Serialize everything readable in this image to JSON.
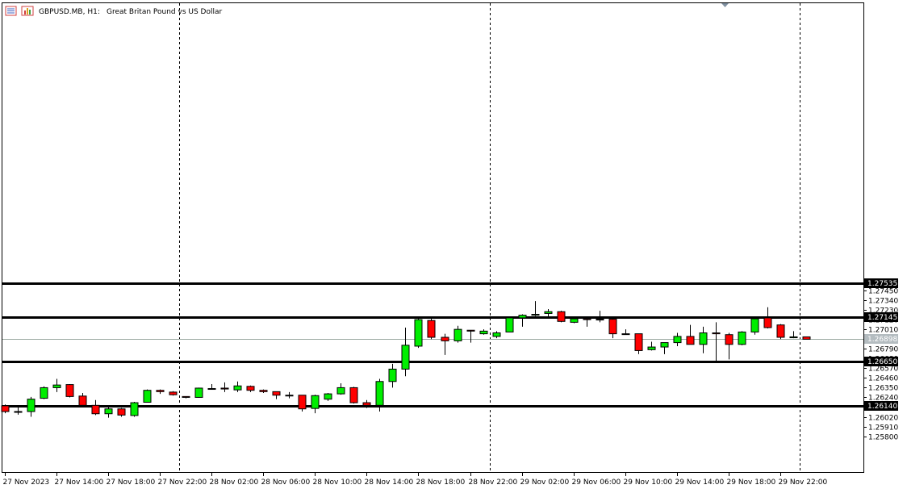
{
  "header": {
    "symbol": "GBPUSD.MB, H1:",
    "description": "Great Britan Pound vs US Dollar"
  },
  "colors": {
    "bull": "#00ee00",
    "bear": "#ff0000",
    "outline": "#000000",
    "level_line": "#000000",
    "price_line": "#9aa8a0",
    "label_bg": "#000000",
    "price_label_bg": "#b4bcc0"
  },
  "chart_data": {
    "type": "candlestick",
    "timeframe": "H1",
    "title": "GBPUSD.MB, H1:  Great Britan Pound vs US Dollar",
    "y_axis": {
      "side": "right",
      "range": [
        1.257,
        1.2762
      ],
      "ticks": [
        "1.27560",
        "1.27450",
        "1.27340",
        "1.27230",
        "1.27120",
        "1.27010",
        "1.26790",
        "1.26680",
        "1.26570",
        "1.26460",
        "1.26350",
        "1.26240",
        "1.26020",
        "1.25910",
        "1.25800"
      ]
    },
    "x_axis": {
      "ticks": [
        {
          "bar": 0,
          "label": "27 Nov 2023"
        },
        {
          "bar": 4,
          "label": "27 Nov 14:00"
        },
        {
          "bar": 8,
          "label": "27 Nov 18:00"
        },
        {
          "bar": 12,
          "label": "27 Nov 22:00"
        },
        {
          "bar": 16,
          "label": "28 Nov 02:00"
        },
        {
          "bar": 20,
          "label": "28 Nov 06:00"
        },
        {
          "bar": 24,
          "label": "28 Nov 10:00"
        },
        {
          "bar": 28,
          "label": "28 Nov 14:00"
        },
        {
          "bar": 32,
          "label": "28 Nov 18:00"
        },
        {
          "bar": 36,
          "label": "28 Nov 22:00"
        },
        {
          "bar": 40,
          "label": "29 Nov 02:00"
        },
        {
          "bar": 44,
          "label": "29 Nov 06:00"
        },
        {
          "bar": 48,
          "label": "29 Nov 10:00"
        },
        {
          "bar": 52,
          "label": "29 Nov 14:00"
        },
        {
          "bar": 56,
          "label": "29 Nov 18:00"
        },
        {
          "bar": 60,
          "label": "29 Nov 22:00"
        }
      ]
    },
    "period_separators": [
      13.5,
      37.5,
      61.5
    ],
    "horizontal_levels": [
      {
        "value": "1.27535",
        "price": 1.27535
      },
      {
        "value": "1.27145",
        "price": 1.27145
      },
      {
        "value": "1.26650",
        "price": 1.2665
      },
      {
        "value": "1.26140",
        "price": 1.2614
      }
    ],
    "current_price": {
      "value": "1.26898",
      "price": 1.26898
    },
    "candles": [
      {
        "o": 1.26145,
        "h": 1.2616,
        "l": 1.2606,
        "c": 1.2608
      },
      {
        "o": 1.26075,
        "h": 1.2615,
        "l": 1.26045,
        "c": 1.2608
      },
      {
        "o": 1.2608,
        "h": 1.26245,
        "l": 1.2602,
        "c": 1.2622
      },
      {
        "o": 1.2623,
        "h": 1.26365,
        "l": 1.2622,
        "c": 1.2635
      },
      {
        "o": 1.2635,
        "h": 1.2645,
        "l": 1.263,
        "c": 1.2638
      },
      {
        "o": 1.26385,
        "h": 1.2639,
        "l": 1.2624,
        "c": 1.2625
      },
      {
        "o": 1.26255,
        "h": 1.2629,
        "l": 1.2613,
        "c": 1.2615
      },
      {
        "o": 1.2615,
        "h": 1.2621,
        "l": 1.2604,
        "c": 1.26055
      },
      {
        "o": 1.26055,
        "h": 1.2613,
        "l": 1.2601,
        "c": 1.2611
      },
      {
        "o": 1.2611,
        "h": 1.2612,
        "l": 1.2602,
        "c": 1.2604
      },
      {
        "o": 1.26035,
        "h": 1.2619,
        "l": 1.2602,
        "c": 1.2618
      },
      {
        "o": 1.26185,
        "h": 1.2633,
        "l": 1.2618,
        "c": 1.2632
      },
      {
        "o": 1.2632,
        "h": 1.2633,
        "l": 1.2628,
        "c": 1.26305
      },
      {
        "o": 1.263,
        "h": 1.2631,
        "l": 1.2626,
        "c": 1.2627
      },
      {
        "o": 1.2625,
        "h": 1.2625,
        "l": 1.2623,
        "c": 1.2624
      },
      {
        "o": 1.2624,
        "h": 1.2635,
        "l": 1.26235,
        "c": 1.26345
      },
      {
        "o": 1.2634,
        "h": 1.2639,
        "l": 1.2633,
        "c": 1.2634
      },
      {
        "o": 1.26345,
        "h": 1.2641,
        "l": 1.263,
        "c": 1.26335
      },
      {
        "o": 1.26325,
        "h": 1.2642,
        "l": 1.263,
        "c": 1.2637
      },
      {
        "o": 1.26365,
        "h": 1.26375,
        "l": 1.263,
        "c": 1.2632
      },
      {
        "o": 1.2632,
        "h": 1.2633,
        "l": 1.2629,
        "c": 1.26305
      },
      {
        "o": 1.26305,
        "h": 1.26305,
        "l": 1.2622,
        "c": 1.26265
      },
      {
        "o": 1.26265,
        "h": 1.263,
        "l": 1.2623,
        "c": 1.2626
      },
      {
        "o": 1.26265,
        "h": 1.26265,
        "l": 1.2608,
        "c": 1.2611
      },
      {
        "o": 1.26115,
        "h": 1.2627,
        "l": 1.2606,
        "c": 1.2626
      },
      {
        "o": 1.2622,
        "h": 1.2629,
        "l": 1.262,
        "c": 1.2628
      },
      {
        "o": 1.2628,
        "h": 1.264,
        "l": 1.2627,
        "c": 1.2635
      },
      {
        "o": 1.2635,
        "h": 1.2636,
        "l": 1.2617,
        "c": 1.2618
      },
      {
        "o": 1.2618,
        "h": 1.2621,
        "l": 1.2612,
        "c": 1.2615
      },
      {
        "o": 1.2615,
        "h": 1.2645,
        "l": 1.2608,
        "c": 1.2642
      },
      {
        "o": 1.2642,
        "h": 1.2662,
        "l": 1.2635,
        "c": 1.2656
      },
      {
        "o": 1.2656,
        "h": 1.2703,
        "l": 1.2648,
        "c": 1.2683
      },
      {
        "o": 1.2682,
        "h": 1.2713,
        "l": 1.268,
        "c": 1.2712
      },
      {
        "o": 1.2711,
        "h": 1.2713,
        "l": 1.269,
        "c": 1.2692
      },
      {
        "o": 1.2692,
        "h": 1.2696,
        "l": 1.2672,
        "c": 1.2688
      },
      {
        "o": 1.2688,
        "h": 1.2705,
        "l": 1.2686,
        "c": 1.2701
      },
      {
        "o": 1.27,
        "h": 1.27,
        "l": 1.2686,
        "c": 1.2699
      },
      {
        "o": 1.2696,
        "h": 1.2701,
        "l": 1.2695,
        "c": 1.2699
      },
      {
        "o": 1.2693,
        "h": 1.2699,
        "l": 1.2691,
        "c": 1.2697
      },
      {
        "o": 1.2698,
        "h": 1.2714,
        "l": 1.2698,
        "c": 1.2714
      },
      {
        "o": 1.2714,
        "h": 1.2718,
        "l": 1.2704,
        "c": 1.2717
      },
      {
        "o": 1.2717,
        "h": 1.2733,
        "l": 1.2716,
        "c": 1.2718
      },
      {
        "o": 1.2719,
        "h": 1.2724,
        "l": 1.2715,
        "c": 1.2721
      },
      {
        "o": 1.2721,
        "h": 1.2722,
        "l": 1.2709,
        "c": 1.271
      },
      {
        "o": 1.2709,
        "h": 1.2713,
        "l": 1.2708,
        "c": 1.2713
      },
      {
        "o": 1.2713,
        "h": 1.2715,
        "l": 1.2704,
        "c": 1.2712
      },
      {
        "o": 1.2712,
        "h": 1.2722,
        "l": 1.2709,
        "c": 1.27125
      },
      {
        "o": 1.27125,
        "h": 1.2713,
        "l": 1.2691,
        "c": 1.2696
      },
      {
        "o": 1.2696,
        "h": 1.2701,
        "l": 1.2695,
        "c": 1.2696
      },
      {
        "o": 1.2696,
        "h": 1.2696,
        "l": 1.2673,
        "c": 1.2677
      },
      {
        "o": 1.2678,
        "h": 1.2687,
        "l": 1.2677,
        "c": 1.2681
      },
      {
        "o": 1.2681,
        "h": 1.2686,
        "l": 1.2673,
        "c": 1.2686
      },
      {
        "o": 1.2686,
        "h": 1.2697,
        "l": 1.2682,
        "c": 1.2693
      },
      {
        "o": 1.2693,
        "h": 1.2706,
        "l": 1.2685,
        "c": 1.2684
      },
      {
        "o": 1.2684,
        "h": 1.2704,
        "l": 1.2674,
        "c": 1.2697
      },
      {
        "o": 1.2697,
        "h": 1.2709,
        "l": 1.2664,
        "c": 1.2696
      },
      {
        "o": 1.2695,
        "h": 1.2697,
        "l": 1.2667,
        "c": 1.2684
      },
      {
        "o": 1.2684,
        "h": 1.2699,
        "l": 1.2683,
        "c": 1.2698
      },
      {
        "o": 1.2698,
        "h": 1.2715,
        "l": 1.2695,
        "c": 1.2713
      },
      {
        "o": 1.2714,
        "h": 1.2726,
        "l": 1.2702,
        "c": 1.2703
      },
      {
        "o": 1.2706,
        "h": 1.2707,
        "l": 1.269,
        "c": 1.2692
      },
      {
        "o": 1.26915,
        "h": 1.2699,
        "l": 1.2691,
        "c": 1.26925
      },
      {
        "o": 1.26925,
        "h": 1.26925,
        "l": 1.26898,
        "c": 1.26898
      }
    ]
  }
}
